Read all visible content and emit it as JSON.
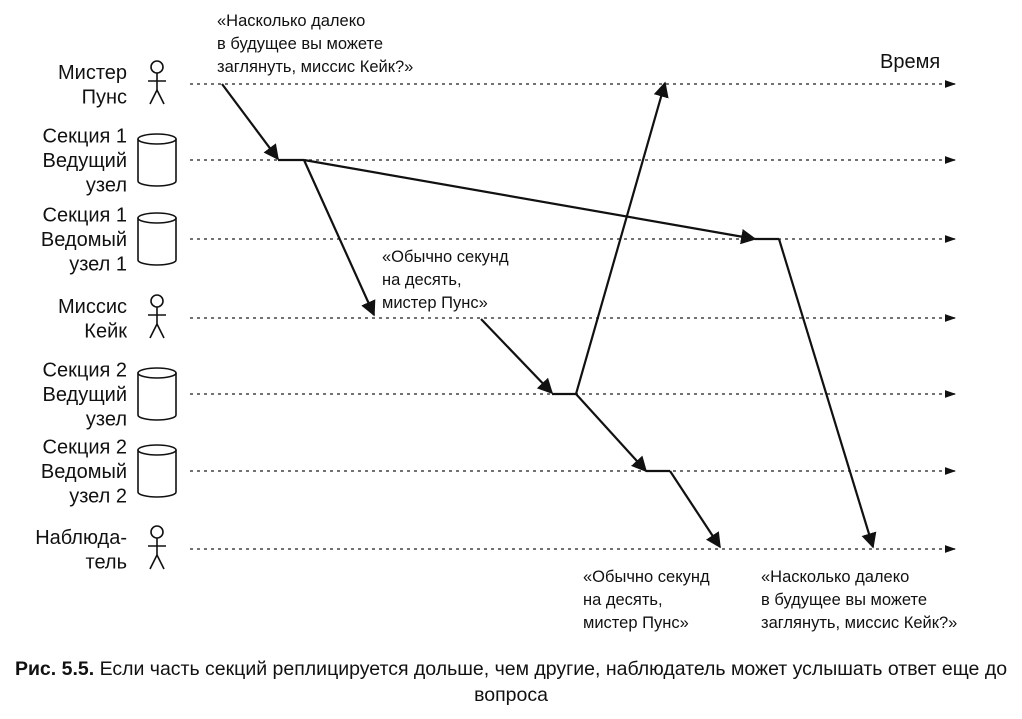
{
  "time_label": "Время",
  "participants": [
    {
      "id": "mr-poons",
      "kind": "person",
      "label_lines": [
        "Мистер",
        "Пунс"
      ]
    },
    {
      "id": "p1-leader",
      "kind": "db",
      "label_lines": [
        "Секция 1",
        "Ведущий",
        "узел"
      ]
    },
    {
      "id": "p1-follower",
      "kind": "db",
      "label_lines": [
        "Секция 1",
        "Ведомый",
        "узел 1"
      ]
    },
    {
      "id": "mrs-cake",
      "kind": "person",
      "label_lines": [
        "Миссис",
        "Кейк"
      ]
    },
    {
      "id": "p2-leader",
      "kind": "db",
      "label_lines": [
        "Секция 2",
        "Ведущий",
        "узел"
      ]
    },
    {
      "id": "p2-follower",
      "kind": "db",
      "label_lines": [
        "Секция 2",
        "Ведомый",
        "узел 2"
      ]
    },
    {
      "id": "observer",
      "kind": "person",
      "label_lines": [
        "Наблюда-",
        "тель"
      ]
    }
  ],
  "quotes": {
    "question_top": [
      "«Насколько далеко",
      "в будущее вы можете",
      "заглянуть, миссис Кейк?»"
    ],
    "answer_mid": [
      "«Обычно секунд",
      "на десять,",
      "мистер Пунс»"
    ],
    "answer_bottom": [
      "«Обычно секунд",
      "на десять,",
      "мистер Пунс»"
    ],
    "question_bottom": [
      "«Насколько далеко",
      "в будущее вы можете",
      "заглянуть, миссис Кейк?»"
    ]
  },
  "caption": {
    "prefix": "Рис. 5.5.",
    "text": "Если часть секций реплицируется дольше, чем другие, наблюдатель может услышать ответ еще до вопроса"
  }
}
